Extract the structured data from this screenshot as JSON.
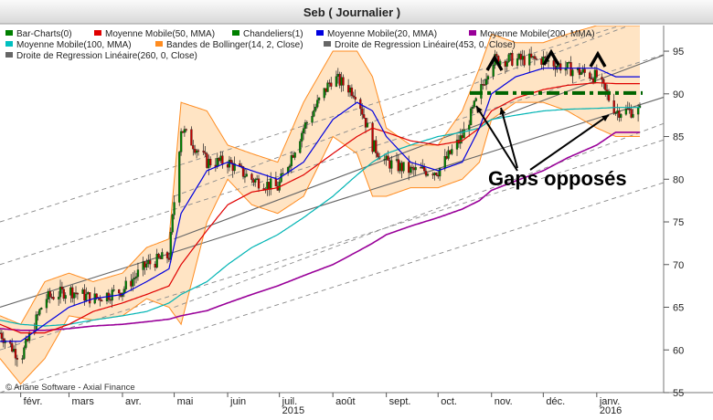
{
  "window": {
    "title": "Seb  ( Journalier )"
  },
  "legend": [
    {
      "label": "Bar-Charts(0)",
      "color": "#008000"
    },
    {
      "label": "Moyenne Mobile(50, MMA)",
      "color": "#e00000"
    },
    {
      "label": "Chandeliers(1)",
      "color": "#008000"
    },
    {
      "label": "Moyenne Mobile(20, MMA)",
      "color": "#0000e0"
    },
    {
      "label": "Moyenne Mobile(200, MMA)",
      "color": "#990099"
    },
    {
      "label": "Moyenne Mobile(100, MMA)",
      "color": "#00c0c0"
    },
    {
      "label": "Bandes de Bollinger(14, 2, Close)",
      "color": "#ff8c20"
    },
    {
      "label": "Droite de Regression Linéaire(453, 0, Close)",
      "color": "#666666"
    },
    {
      "label": "Droite de Regression Linéaire(260, 0, Close)",
      "color": "#666666"
    }
  ],
  "copyright": "© Ariane Software - Axial Finance",
  "annotation": {
    "text": "Gaps opposés"
  },
  "colors": {
    "background": "#ffffff",
    "band_fill": "#ffe4c4",
    "band_line": "#ff8c20",
    "up": "#008000",
    "down": "#c00000",
    "gap_line": "#006400"
  },
  "chart_data": {
    "type": "line",
    "title": "Seb  ( Journalier )",
    "x_axis": {
      "ticks": [
        "févr.",
        "mars",
        "avr.",
        "mai",
        "juin",
        "juil.",
        "août",
        "sept.",
        "oct.",
        "nov.",
        "déc.",
        "janv."
      ],
      "year_labels": [
        "2015",
        "2016"
      ]
    },
    "y_axis": {
      "ticks": [
        55,
        60,
        65,
        70,
        75,
        80,
        85,
        90,
        95
      ],
      "ylim": [
        55,
        98
      ],
      "position": "right"
    },
    "grid": false,
    "x": [
      "2015-01-20",
      "2015-02-01",
      "2015-02-15",
      "2015-03-01",
      "2015-03-15",
      "2015-04-01",
      "2015-04-15",
      "2015-04-28",
      "2015-05-05",
      "2015-05-20",
      "2015-06-01",
      "2015-06-15",
      "2015-06-30",
      "2015-07-15",
      "2015-08-01",
      "2015-08-15",
      "2015-08-24",
      "2015-09-01",
      "2015-09-15",
      "2015-10-01",
      "2015-10-15",
      "2015-10-25",
      "2015-11-01",
      "2015-11-15",
      "2015-12-01",
      "2015-12-15",
      "2016-01-01",
      "2016-01-12"
    ],
    "series": [
      {
        "name": "Close",
        "values": [
          62,
          59,
          66,
          67,
          66,
          67,
          70,
          71,
          86,
          82,
          82,
          80,
          79,
          86,
          92,
          90,
          84,
          82,
          81,
          81,
          85,
          90,
          94,
          94,
          94,
          93,
          92,
          88
        ]
      },
      {
        "name": "Moyenne Mobile(20, MMA)",
        "values": [
          61,
          61,
          63,
          65,
          66,
          66.5,
          68,
          69.5,
          76,
          81,
          82,
          81,
          80,
          82,
          87,
          89,
          88,
          85,
          82,
          81,
          82,
          86,
          90,
          92,
          93,
          93,
          93,
          92
        ]
      },
      {
        "name": "Moyenne Mobile(50, MMA)",
        "values": [
          63,
          62,
          62,
          63,
          64.5,
          65.5,
          66.5,
          67.5,
          70,
          74,
          77,
          78.5,
          79,
          80.5,
          83,
          85,
          86,
          85.5,
          84.5,
          84,
          84.5,
          86,
          88,
          89.5,
          90.5,
          91,
          91.3,
          91.2
        ]
      },
      {
        "name": "Moyenne Mobile(100, MMA)",
        "values": [
          63.5,
          63,
          62.8,
          63,
          63.5,
          64,
          64.5,
          65.5,
          66.5,
          68,
          70,
          72,
          73.5,
          75.5,
          78,
          80.5,
          82,
          83,
          84,
          85,
          85.5,
          86,
          87,
          87.5,
          88,
          88.2,
          88.3,
          88.4
        ]
      },
      {
        "name": "Moyenne Mobile(200, MMA)",
        "values": [
          62.5,
          62.3,
          62.3,
          62.5,
          62.8,
          63,
          63.3,
          63.6,
          64,
          64.6,
          65.5,
          66.5,
          67.5,
          68.7,
          70,
          71.5,
          72.5,
          73.5,
          74.5,
          75.5,
          76.5,
          77.5,
          78.7,
          79.8,
          81,
          82.5,
          84,
          85.5
        ]
      },
      {
        "name": "Bandes de Bollinger(14, 2, Close) haute",
        "values": [
          64,
          63,
          68,
          69,
          68,
          69,
          72,
          73,
          89,
          88,
          84,
          83,
          82,
          89,
          95,
          95,
          92,
          86,
          84,
          84,
          88,
          93,
          97,
          96,
          96,
          97,
          98,
          98
        ]
      },
      {
        "name": "Bandes de Bollinger(14, 2, Close) basse",
        "values": [
          59,
          56,
          59,
          64,
          63.5,
          64,
          66,
          65,
          63,
          75,
          80,
          77,
          76,
          78,
          85,
          83,
          78,
          78,
          79,
          79,
          80,
          82,
          87,
          89,
          89,
          88,
          86,
          85
        ]
      }
    ],
    "annotations": [
      {
        "text": "Gaps opposés",
        "value": 80.5
      },
      {
        "type": "horizontal_level",
        "value": 90.1
      }
    ]
  }
}
